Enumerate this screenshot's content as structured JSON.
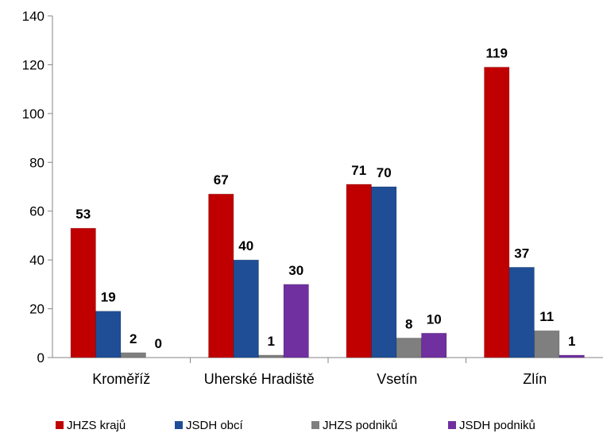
{
  "chart_data": {
    "type": "bar",
    "categories": [
      "Kroměříž",
      "Uherské Hradiště",
      "Vsetín",
      "Zlín"
    ],
    "series": [
      {
        "name": "JHZS krajů",
        "color": "#C00000",
        "values": [
          53,
          67,
          71,
          119
        ]
      },
      {
        "name": "JSDH obcí",
        "color": "#1F4E96",
        "values": [
          19,
          40,
          70,
          37
        ]
      },
      {
        "name": "JHZS podniků",
        "color": "#7F7F7F",
        "values": [
          2,
          1,
          8,
          11
        ]
      },
      {
        "name": "JSDH podniků",
        "color": "#7030A0",
        "values": [
          0,
          30,
          10,
          1
        ]
      }
    ],
    "ylim": [
      0,
      140
    ],
    "yticks": [
      0,
      20,
      40,
      60,
      80,
      100,
      120,
      140
    ],
    "grid": false,
    "legend": "bottom",
    "data_labels": true
  }
}
